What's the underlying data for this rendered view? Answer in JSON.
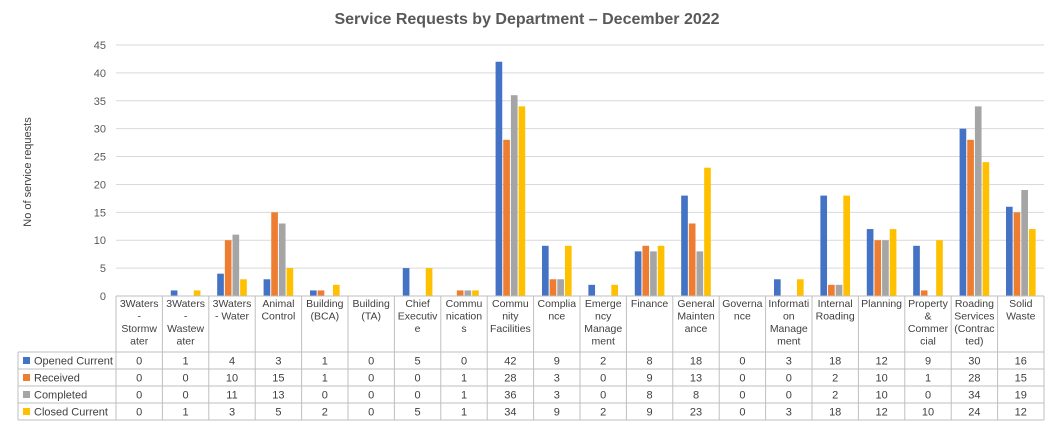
{
  "chart_data": {
    "type": "bar",
    "title": "Service Requests by Department – December 2022",
    "xlabel": "",
    "ylabel": "No of service requests",
    "ylim": [
      0,
      45
    ],
    "yticks": [
      0,
      5,
      10,
      15,
      20,
      25,
      30,
      35,
      40,
      45
    ],
    "grid": true,
    "legend_position": "data-table",
    "categories": [
      [
        "3Waters",
        "-",
        "Stormw",
        "ater"
      ],
      [
        "3Waters",
        "-",
        "Wastew",
        "ater"
      ],
      [
        "3Waters",
        "- Water"
      ],
      [
        "Animal",
        "Control"
      ],
      [
        "Building",
        "(BCA)"
      ],
      [
        "Building",
        "(TA)"
      ],
      [
        "Chief",
        "Executiv",
        "e"
      ],
      [
        "Commu",
        "nication",
        "s"
      ],
      [
        "Commu",
        "nity",
        "Facilities"
      ],
      [
        "Complia",
        "nce"
      ],
      [
        "Emerge",
        "ncy",
        "Manage",
        "ment"
      ],
      [
        "Finance"
      ],
      [
        "General",
        "Mainten",
        "ance"
      ],
      [
        "Governa",
        "nce"
      ],
      [
        "Informati",
        "on",
        "Manage",
        "ment"
      ],
      [
        "Internal",
        "Roading"
      ],
      [
        "Planning"
      ],
      [
        "Property",
        "&",
        "Commer",
        "cial"
      ],
      [
        "Roading",
        "Services",
        "(Contrac",
        "ted)"
      ],
      [
        "Solid",
        "Waste"
      ]
    ],
    "series": [
      {
        "name": "Opened Current",
        "color": "#4472c4",
        "values": [
          0,
          1,
          4,
          3,
          1,
          0,
          5,
          0,
          42,
          9,
          2,
          8,
          18,
          0,
          3,
          18,
          12,
          9,
          30,
          16
        ]
      },
      {
        "name": "Received",
        "color": "#ed7d31",
        "values": [
          0,
          0,
          10,
          15,
          1,
          0,
          0,
          1,
          28,
          3,
          0,
          9,
          13,
          0,
          0,
          2,
          10,
          1,
          28,
          15
        ]
      },
      {
        "name": "Completed",
        "color": "#a5a5a5",
        "values": [
          0,
          0,
          11,
          13,
          0,
          0,
          0,
          1,
          36,
          3,
          0,
          8,
          8,
          0,
          0,
          2,
          10,
          0,
          34,
          19
        ]
      },
      {
        "name": "Closed Current",
        "color": "#ffc000",
        "values": [
          0,
          1,
          3,
          5,
          2,
          0,
          5,
          1,
          34,
          9,
          2,
          9,
          23,
          0,
          3,
          18,
          12,
          10,
          24,
          12
        ]
      }
    ]
  }
}
